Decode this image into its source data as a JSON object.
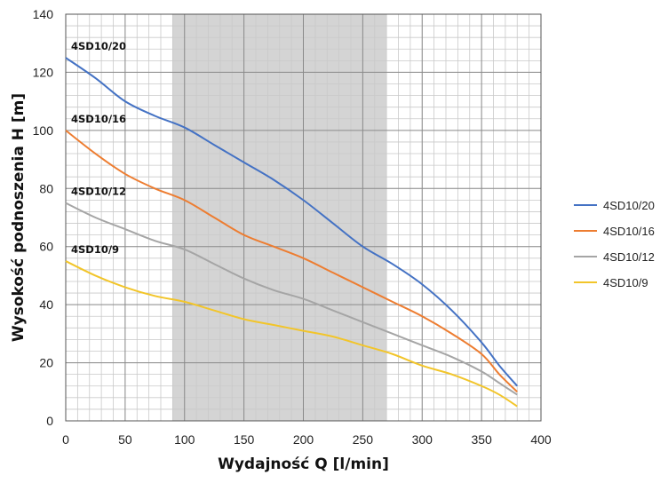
{
  "chart_data": {
    "type": "line",
    "title": "",
    "xlabel": "Wydajność Q [l/min]",
    "ylabel": "Wysokość podnoszenia H [m]",
    "xlim": [
      0,
      400
    ],
    "ylim": [
      0,
      140
    ],
    "x_ticks": [
      0,
      50,
      100,
      150,
      200,
      250,
      300,
      350,
      400
    ],
    "y_ticks": [
      0,
      20,
      40,
      60,
      80,
      100,
      120,
      140
    ],
    "grid": true,
    "minor_grid": true,
    "legend_position": "right",
    "highlight_band": {
      "x_start": 90,
      "x_end": 270,
      "color": "#d4d4d4"
    },
    "series": [
      {
        "name": "4SD10/20",
        "color": "#4472c4",
        "label": "4SD10/20",
        "x": [
          0,
          25,
          50,
          75,
          100,
          125,
          150,
          175,
          200,
          225,
          250,
          275,
          300,
          325,
          350,
          365,
          380
        ],
        "y": [
          125,
          118,
          110,
          105,
          101,
          95,
          89,
          83,
          76,
          68,
          60,
          54,
          47,
          38,
          27,
          19,
          12
        ]
      },
      {
        "name": "4SD10/16",
        "color": "#ed7d31",
        "label": "4SD10/16",
        "x": [
          0,
          25,
          50,
          75,
          100,
          125,
          150,
          175,
          200,
          225,
          250,
          275,
          300,
          325,
          350,
          365,
          380
        ],
        "y": [
          100,
          92,
          85,
          80,
          76,
          70,
          64,
          60,
          56,
          51,
          46,
          41,
          36,
          30,
          23,
          16,
          10
        ]
      },
      {
        "name": "4SD10/12",
        "color": "#a5a5a5",
        "label": "4SD10/12",
        "x": [
          0,
          25,
          50,
          75,
          100,
          125,
          150,
          175,
          200,
          225,
          250,
          275,
          300,
          325,
          350,
          365,
          380
        ],
        "y": [
          75,
          70,
          66,
          62,
          59,
          54,
          49,
          45,
          42,
          38,
          34,
          30,
          26,
          22,
          17,
          13,
          9
        ]
      },
      {
        "name": "4SD10/9",
        "color": "#f2c52a",
        "label": "4SD10/9",
        "x": [
          0,
          25,
          50,
          75,
          100,
          125,
          150,
          175,
          200,
          225,
          250,
          275,
          300,
          325,
          350,
          365,
          380
        ],
        "y": [
          55,
          50,
          46,
          43,
          41,
          38,
          35,
          33,
          31,
          29,
          26,
          23,
          19,
          16,
          12,
          9,
          5
        ]
      }
    ]
  }
}
